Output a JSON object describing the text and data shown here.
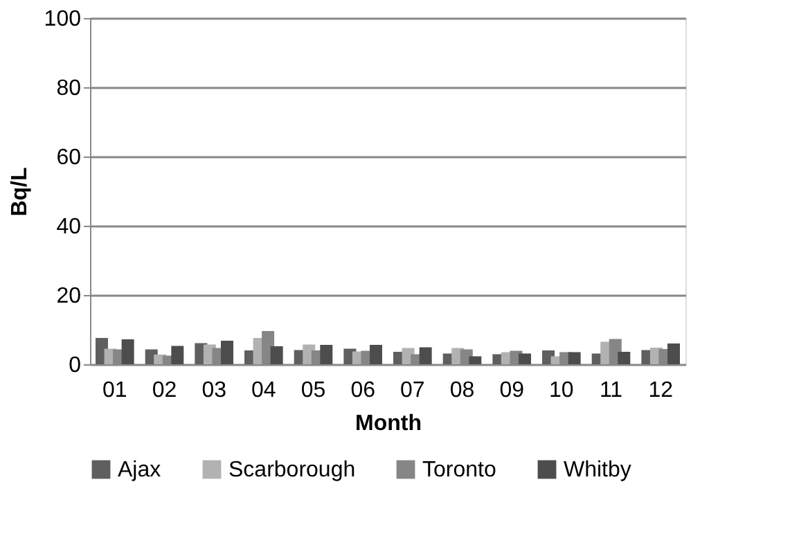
{
  "chart_data": {
    "type": "bar",
    "xlabel": "Month",
    "ylabel": "Bq/L",
    "categories": [
      "01",
      "02",
      "03",
      "04",
      "05",
      "06",
      "07",
      "08",
      "09",
      "10",
      "11",
      "12"
    ],
    "series": [
      {
        "name": "Ajax",
        "color": "#5f5f5f",
        "values": [
          7.6,
          4.3,
          6.1,
          4.0,
          4.1,
          4.5,
          3.6,
          3.1,
          2.9,
          4.0,
          3.1,
          4.1
        ]
      },
      {
        "name": "Scarborough",
        "color": "#b2b2b2",
        "values": [
          4.5,
          2.8,
          5.7,
          7.6,
          5.7,
          3.7,
          4.7,
          4.7,
          3.5,
          2.3,
          6.5,
          4.8
        ]
      },
      {
        "name": "Toronto",
        "color": "#868686",
        "values": [
          4.3,
          2.5,
          4.7,
          9.6,
          4.0,
          3.9,
          2.9,
          4.3,
          3.9,
          3.5,
          7.3,
          4.4
        ]
      },
      {
        "name": "Whitby",
        "color": "#4d4d4d",
        "values": [
          7.2,
          5.3,
          6.8,
          5.2,
          5.6,
          5.6,
          4.9,
          2.3,
          3.1,
          3.5,
          3.6,
          6.0
        ]
      }
    ],
    "ylim": [
      0,
      100
    ],
    "yticks": [
      0,
      20,
      40,
      60,
      80,
      100
    ],
    "grid": "y",
    "legend": "bottom"
  }
}
